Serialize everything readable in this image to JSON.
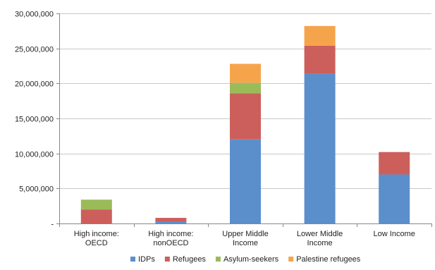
{
  "chart_data": {
    "type": "bar",
    "stacked": true,
    "categories": [
      [
        "High income:",
        "OECD"
      ],
      [
        "High income:",
        "nonOECD"
      ],
      [
        "Upper Middle",
        "Income"
      ],
      [
        "Lower Middle",
        "Income"
      ],
      [
        "Low Income"
      ]
    ],
    "series": [
      {
        "name": "IDPs",
        "color": "#5b8fcb",
        "values": [
          0,
          300000,
          12000000,
          21400000,
          7000000
        ]
      },
      {
        "name": "Refugees",
        "color": "#cc5f5c",
        "values": [
          2000000,
          500000,
          6600000,
          4000000,
          3200000
        ]
      },
      {
        "name": "Asylum-seekers",
        "color": "#9bbb59",
        "values": [
          1400000,
          0,
          1500000,
          0,
          0
        ]
      },
      {
        "name": "Palestine refugees",
        "color": "#f6a44c",
        "values": [
          0,
          0,
          2700000,
          2800000,
          0
        ]
      }
    ],
    "ylim": [
      0,
      30000000
    ],
    "yticks": [
      0,
      5000000,
      10000000,
      15000000,
      20000000,
      25000000,
      30000000
    ],
    "ytick_labels": [
      "-",
      "5,000,000",
      "10,000,000",
      "15,000,000",
      "20,000,000",
      "25,000,000",
      "30,000,000"
    ],
    "grid": true,
    "legend_position": "bottom",
    "title": "",
    "xlabel": "",
    "ylabel": ""
  }
}
